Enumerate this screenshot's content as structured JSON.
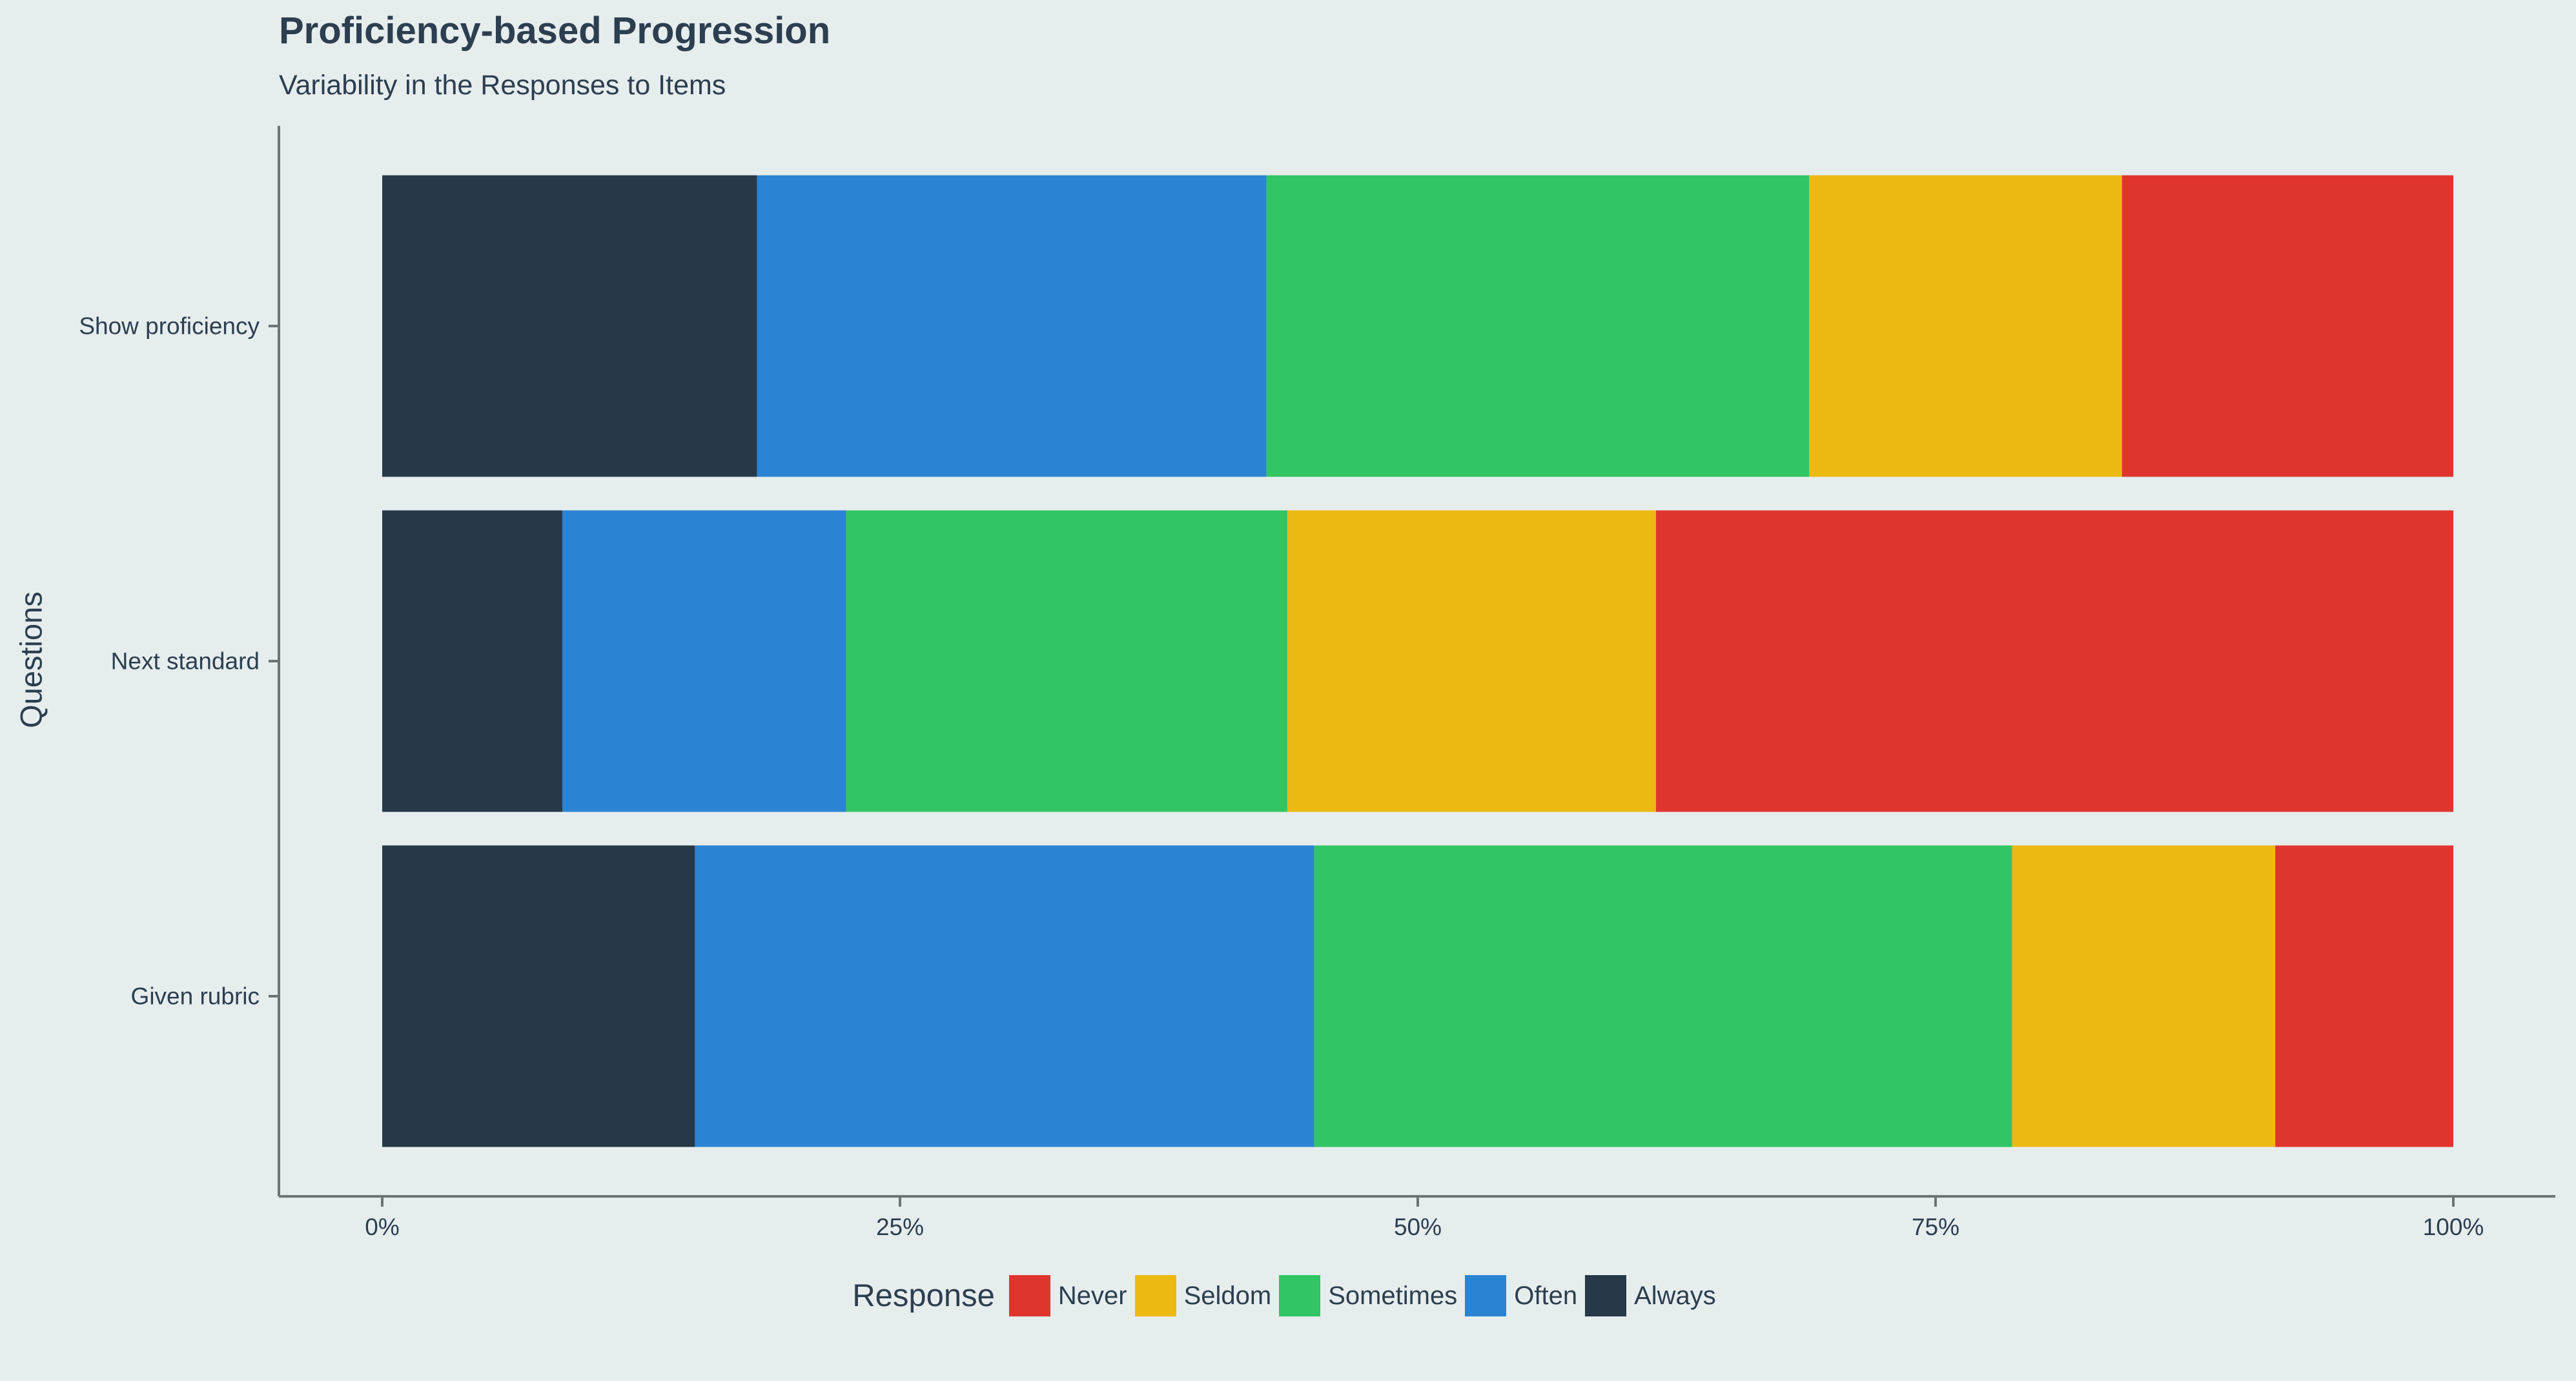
{
  "chart_data": {
    "type": "bar",
    "orientation": "horizontal",
    "stacked": true,
    "title": "Proficiency-based Progression",
    "subtitle": "Variability in the Responses to Items",
    "ylabel": "Questions",
    "xlabel": "",
    "categories": [
      "Show proficiency",
      "Next standard",
      "Given rubric"
    ],
    "x_ticks": [
      "0%",
      "25%",
      "50%",
      "75%",
      "100%"
    ],
    "xlim": [
      0,
      100
    ],
    "legend_title": "Response",
    "legend_position": "bottom",
    "grid": false,
    "series": [
      {
        "name": "Always",
        "color": "#273849",
        "values": [
          18.1,
          8.7,
          15.1
        ]
      },
      {
        "name": "Often",
        "color": "#2b84d3",
        "values": [
          24.6,
          13.7,
          29.9
        ]
      },
      {
        "name": "Sometimes",
        "color": "#31c563",
        "values": [
          26.2,
          21.3,
          33.7
        ]
      },
      {
        "name": "Seldom",
        "color": "#ecb913",
        "values": [
          15.1,
          17.8,
          12.7
        ]
      },
      {
        "name": "Never",
        "color": "#e0352f",
        "values": [
          16.0,
          38.5,
          8.6
        ]
      }
    ],
    "legend_order": [
      "Never",
      "Seldom",
      "Sometimes",
      "Often",
      "Always"
    ]
  }
}
